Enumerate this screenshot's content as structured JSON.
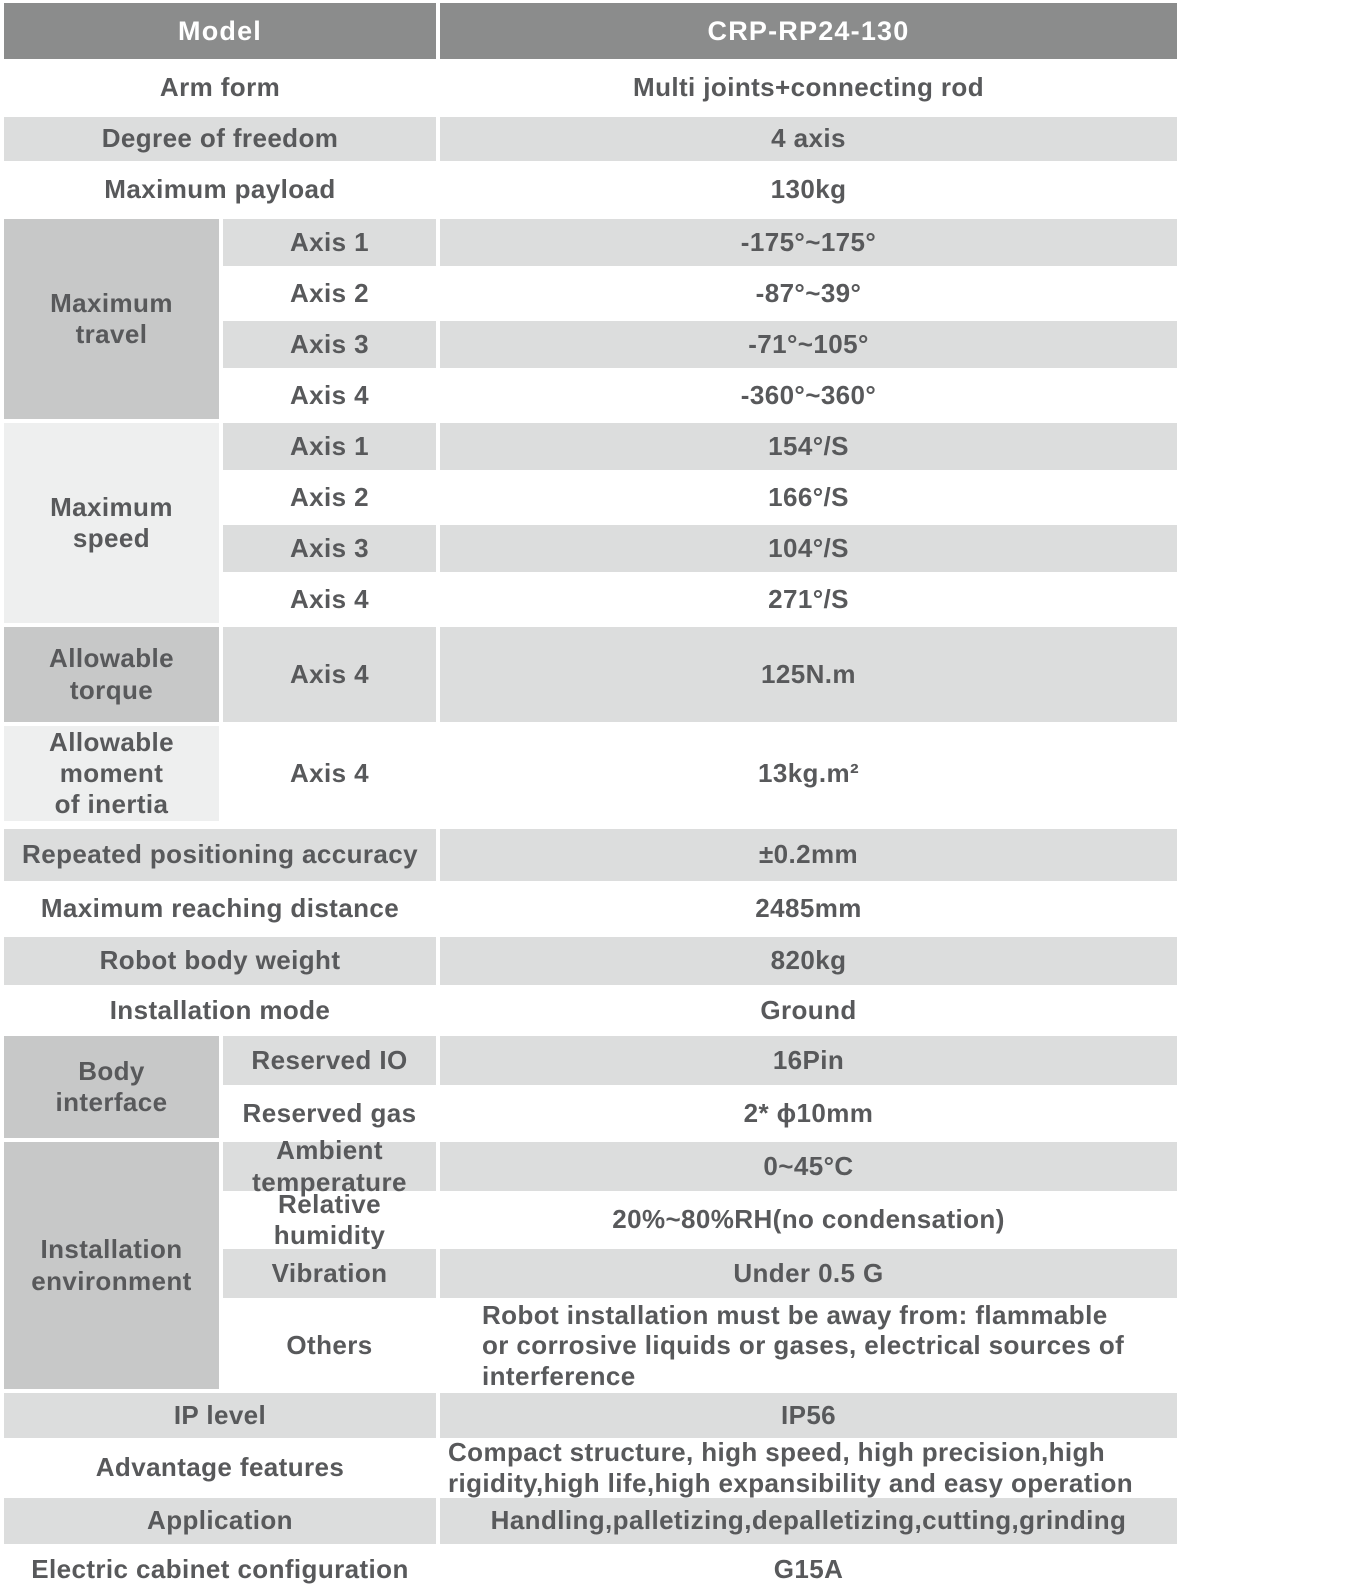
{
  "colors": {
    "header_bg": "#8b8c8c",
    "header_text": "#ffffff",
    "group_cell_medium": "#c7c8c8",
    "group_cell_light": "#eeefef",
    "row_stripe_gray": "#dcdddd",
    "row_white": "#ffffff",
    "body_text": "#58595b"
  },
  "header": {
    "label": "Model",
    "value": "CRP-RP24-130"
  },
  "rows": {
    "arm_form": {
      "label": "Arm form",
      "value": "Multi joints+connecting rod"
    },
    "dof": {
      "label": "Degree of freedom",
      "value": "4 axis"
    },
    "payload": {
      "label": "Maximum payload",
      "value": "130kg"
    },
    "rpa": {
      "label": "Repeated positioning accuracy",
      "value": "±0.2mm"
    },
    "reach": {
      "label": "Maximum reaching distance",
      "value": "2485mm"
    },
    "weight": {
      "label": "Robot body weight",
      "value": "820kg"
    },
    "install_mode": {
      "label": "Installation mode",
      "value": "Ground"
    },
    "ip": {
      "label": "IP level",
      "value": "IP56"
    },
    "advantage": {
      "label": "Advantage features",
      "value": "Compact structure, high speed, high precision,high\nrigidity,high life,high expansibility and easy operation"
    },
    "application": {
      "label": "Application",
      "value": "Handling,palletizing,depalletizing,cutting,grinding"
    },
    "cabinet": {
      "label": "Electric cabinet configuration",
      "value": "G15A"
    }
  },
  "groups": {
    "max_travel": {
      "label": "Maximum\ntravel",
      "rows": [
        {
          "label": "Axis 1",
          "value": "-175°~175°"
        },
        {
          "label": "Axis 2",
          "value": "-87°~39°"
        },
        {
          "label": "Axis 3",
          "value": "-71°~105°"
        },
        {
          "label": "Axis 4",
          "value": "-360°~360°"
        }
      ]
    },
    "max_speed": {
      "label": "Maximum\nspeed",
      "rows": [
        {
          "label": "Axis 1",
          "value": "154°/S"
        },
        {
          "label": "Axis 2",
          "value": "166°/S"
        },
        {
          "label": "Axis 3",
          "value": "104°/S"
        },
        {
          "label": "Axis 4",
          "value": "271°/S"
        }
      ]
    },
    "torque": {
      "label": "Allowable\ntorque",
      "rows": [
        {
          "label": "Axis 4",
          "value": "125N.m"
        }
      ]
    },
    "inertia": {
      "label": "Allowable\nmoment\nof inertia",
      "rows": [
        {
          "label": "Axis 4",
          "value": "13kg.m²"
        }
      ]
    },
    "body_interface": {
      "label": "Body\ninterface",
      "rows": [
        {
          "label": "Reserved IO",
          "value": "16Pin"
        },
        {
          "label": "Reserved gas",
          "value": "2* ϕ10mm"
        }
      ]
    },
    "environment": {
      "label": "Installation\nenvironment",
      "rows": [
        {
          "label": "Ambient\ntemperature",
          "value": "0~45°C"
        },
        {
          "label": "Relative\nhumidity",
          "value": "20%~80%RH(no condensation)"
        },
        {
          "label": "Vibration",
          "value": "Under 0.5 G"
        },
        {
          "label": "Others",
          "value": "Robot installation must be away from: flammable\nor corrosive liquids or gases, electrical sources of\ninterference"
        }
      ]
    }
  }
}
